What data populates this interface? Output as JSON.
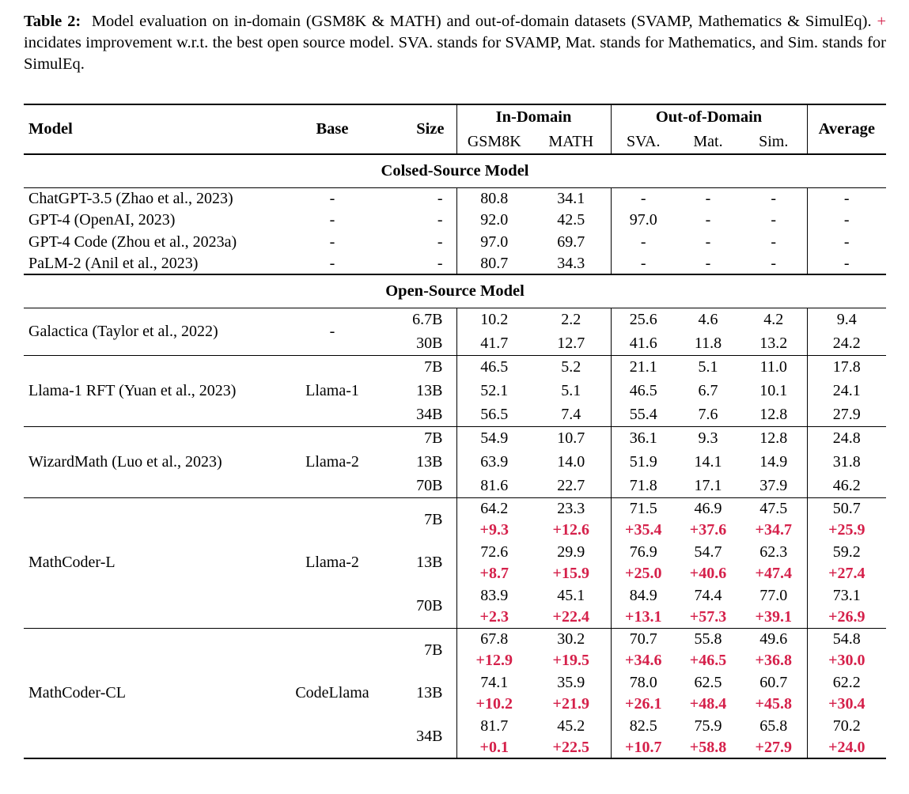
{
  "colors": {
    "accent_red": "#d5204a",
    "text": "#000000",
    "background": "#ffffff",
    "rule": "#000000"
  },
  "caption": {
    "label": "Table 2:",
    "part1": "Model evaluation on in-domain (GSM8K & MATH) and out-of-domain datasets (SVAMP, Mathematics & SimulEq). ",
    "plus": "+",
    "part2": " incidates improvement w.r.t. the best open source model. SVA. stands for SVAMP, Mat. stands for Mathematics, and Sim. stands for SimulEq."
  },
  "table": {
    "header": {
      "model": "Model",
      "base": "Base",
      "size": "Size",
      "in_domain": "In-Domain",
      "out_of_domain": "Out-of-Domain",
      "average": "Average",
      "sub": [
        "GSM8K",
        "MATH",
        "SVA.",
        "Mat.",
        "Sim."
      ]
    },
    "blocks": [
      {
        "kind": "section",
        "title": "Colsed-Source Model"
      },
      {
        "kind": "rows",
        "rows": [
          {
            "model": "ChatGPT-3.5 (Zhao et al., 2023)",
            "base": "-",
            "size": "-",
            "scores": [
              "80.8",
              "34.1",
              "-",
              "-",
              "-",
              "-"
            ]
          },
          {
            "model": "GPT-4 (OpenAI, 2023)",
            "base": "-",
            "size": "-",
            "scores": [
              "92.0",
              "42.5",
              "97.0",
              "-",
              "-",
              "-"
            ]
          },
          {
            "model": "GPT-4 Code (Zhou et al., 2023a)",
            "base": "-",
            "size": "-",
            "scores": [
              "97.0",
              "69.7",
              "-",
              "-",
              "-",
              "-"
            ]
          },
          {
            "model": "PaLM-2 (Anil et al., 2023)",
            "base": "-",
            "size": "-",
            "scores": [
              "80.7",
              "34.3",
              "-",
              "-",
              "-",
              "-"
            ]
          }
        ]
      },
      {
        "kind": "section",
        "title": "Open-Source Model"
      },
      {
        "kind": "group",
        "model": "Galactica (Taylor et al., 2022)",
        "base": "-",
        "sizes": [
          {
            "size": "6.7B",
            "scores": [
              "10.2",
              "2.2",
              "25.6",
              "4.6",
              "4.2",
              "9.4"
            ]
          },
          {
            "size": "30B",
            "scores": [
              "41.7",
              "12.7",
              "41.6",
              "11.8",
              "13.2",
              "24.2"
            ]
          }
        ]
      },
      {
        "kind": "group",
        "model": "Llama-1 RFT (Yuan et al., 2023)",
        "base": "Llama-1",
        "sizes": [
          {
            "size": "7B",
            "scores": [
              "46.5",
              "5.2",
              "21.1",
              "5.1",
              "11.0",
              "17.8"
            ]
          },
          {
            "size": "13B",
            "scores": [
              "52.1",
              "5.1",
              "46.5",
              "6.7",
              "10.1",
              "24.1"
            ]
          },
          {
            "size": "34B",
            "scores": [
              "56.5",
              "7.4",
              "55.4",
              "7.6",
              "12.8",
              "27.9"
            ]
          }
        ]
      },
      {
        "kind": "group",
        "model": "WizardMath (Luo et al., 2023)",
        "base": "Llama-2",
        "sizes": [
          {
            "size": "7B",
            "scores": [
              "54.9",
              "10.7",
              "36.1",
              "9.3",
              "12.8",
              "24.8"
            ]
          },
          {
            "size": "13B",
            "scores": [
              "63.9",
              "14.0",
              "51.9",
              "14.1",
              "14.9",
              "31.8"
            ]
          },
          {
            "size": "70B",
            "scores": [
              "81.6",
              "22.7",
              "71.8",
              "17.1",
              "37.9",
              "46.2"
            ]
          }
        ]
      },
      {
        "kind": "group",
        "model": "MathCoder-L",
        "base": "Llama-2",
        "sizes": [
          {
            "size": "7B",
            "scores": [
              "64.2",
              "23.3",
              "71.5",
              "46.9",
              "47.5",
              "50.7"
            ],
            "gains": [
              "+9.3",
              "+12.6",
              "+35.4",
              "+37.6",
              "+34.7",
              "+25.9"
            ]
          },
          {
            "size": "13B",
            "scores": [
              "72.6",
              "29.9",
              "76.9",
              "54.7",
              "62.3",
              "59.2"
            ],
            "gains": [
              "+8.7",
              "+15.9",
              "+25.0",
              "+40.6",
              "+47.4",
              "+27.4"
            ]
          },
          {
            "size": "70B",
            "scores": [
              "83.9",
              "45.1",
              "84.9",
              "74.4",
              "77.0",
              "73.1"
            ],
            "gains": [
              "+2.3",
              "+22.4",
              "+13.1",
              "+57.3",
              "+39.1",
              "+26.9"
            ]
          }
        ]
      },
      {
        "kind": "group",
        "model": "MathCoder-CL",
        "base": "CodeLlama",
        "sizes": [
          {
            "size": "7B",
            "scores": [
              "67.8",
              "30.2",
              "70.7",
              "55.8",
              "49.6",
              "54.8"
            ],
            "gains": [
              "+12.9",
              "+19.5",
              "+34.6",
              "+46.5",
              "+36.8",
              "+30.0"
            ]
          },
          {
            "size": "13B",
            "scores": [
              "74.1",
              "35.9",
              "78.0",
              "62.5",
              "60.7",
              "62.2"
            ],
            "gains": [
              "+10.2",
              "+21.9",
              "+26.1",
              "+48.4",
              "+45.8",
              "+30.4"
            ]
          },
          {
            "size": "34B",
            "scores": [
              "81.7",
              "45.2",
              "82.5",
              "75.9",
              "65.8",
              "70.2"
            ],
            "gains": [
              "+0.1",
              "+22.5",
              "+10.7",
              "+58.8",
              "+27.9",
              "+24.0"
            ]
          }
        ]
      }
    ]
  }
}
